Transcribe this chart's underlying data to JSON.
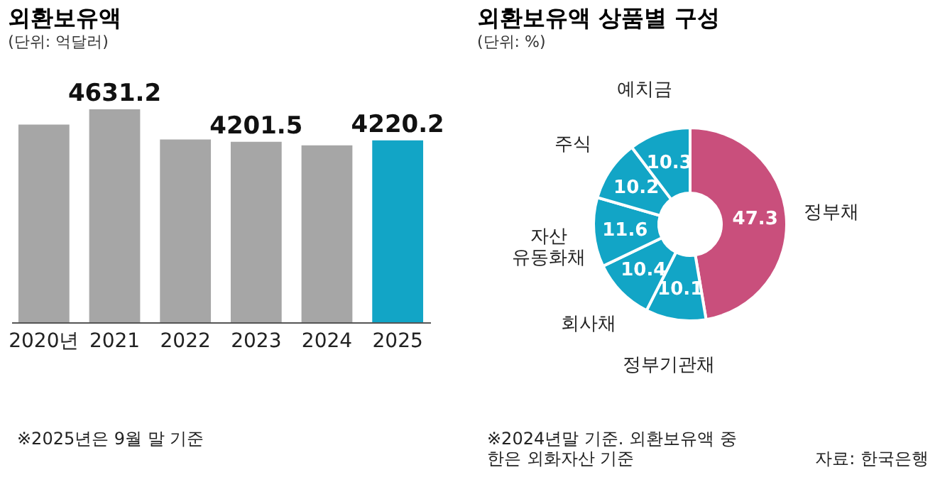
{
  "chart_data": [
    {
      "type": "bar",
      "title": "외환보유액",
      "subtitle": "(단위: 억달러)",
      "categories": [
        "2020년",
        "2021",
        "2022",
        "2023",
        "2024",
        "2025"
      ],
      "values": [
        4430,
        4631.2,
        4232,
        4201.5,
        4156,
        4220.2
      ],
      "value_labels": [
        null,
        "4631.2",
        null,
        "4201.5",
        null,
        "4220.2"
      ],
      "colors": [
        "#a6a6a6",
        "#a6a6a6",
        "#a6a6a6",
        "#a6a6a6",
        "#a6a6a6",
        "#12a5c6"
      ],
      "ylim": [
        1820,
        4631.2
      ],
      "annotations": [
        "※2025년은 9월 말 기준"
      ]
    },
    {
      "type": "donut",
      "title": "외환보유액 상품별 구성",
      "subtitle": "(단위: %)",
      "categories": [
        "정부채",
        "정부기관채",
        "회사채",
        "자산\n유동화채",
        "주식",
        "예치금"
      ],
      "values": [
        47.3,
        10.1,
        10.4,
        11.6,
        10.2,
        10.3
      ],
      "colors": [
        "#c94f7c",
        "#12a5c6",
        "#12a5c6",
        "#12a5c6",
        "#12a5c6",
        "#12a5c6"
      ],
      "data_labels": true,
      "annotations": [
        "※2024년말 기준. 외환보유액 중\n한은 외화자산 기준",
        "자료: 한국은행"
      ]
    }
  ]
}
